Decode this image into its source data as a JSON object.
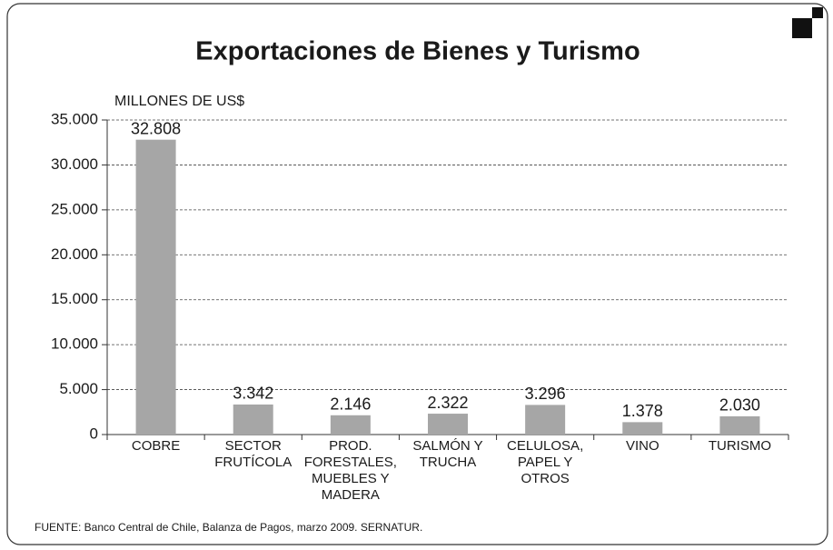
{
  "chart_data": {
    "type": "bar",
    "title": "Exportaciones de Bienes y Turismo",
    "y_label": "MILLONES DE US$",
    "source": "FUENTE: Banco Central de Chile, Balanza de Pagos, marzo 2009. SERNATUR.",
    "categories": [
      "COBRE",
      "SECTOR\nFRUTÍCOLA",
      "PROD.\nFORESTALES,\nMUEBLES Y\nMADERA",
      "SALMÓN Y\nTRUCHA",
      "CELULOSA,\nPAPEL Y\nOTROS",
      "VINO",
      "TURISMO"
    ],
    "values": [
      32808,
      3342,
      2146,
      2322,
      3296,
      1378,
      2030
    ],
    "value_labels": [
      "32.808",
      "3.342",
      "2.146",
      "2.322",
      "3.296",
      "1.378",
      "2.030"
    ],
    "color": "#a6a6a6",
    "ylim": [
      0,
      35000
    ],
    "yticks": [
      0,
      {
        "value": 5000,
        "label": "5.000"
      },
      {
        "value": 10000,
        "label": "10.000"
      },
      {
        "value": 15000,
        "label": "15.000"
      },
      {
        "value": 20000,
        "label": "20.000"
      },
      {
        "value": 25000,
        "label": "25.000"
      },
      {
        "value": 30000,
        "label": "30.000"
      },
      {
        "value": 35000,
        "label": "35.000"
      }
    ],
    "grid": true
  }
}
